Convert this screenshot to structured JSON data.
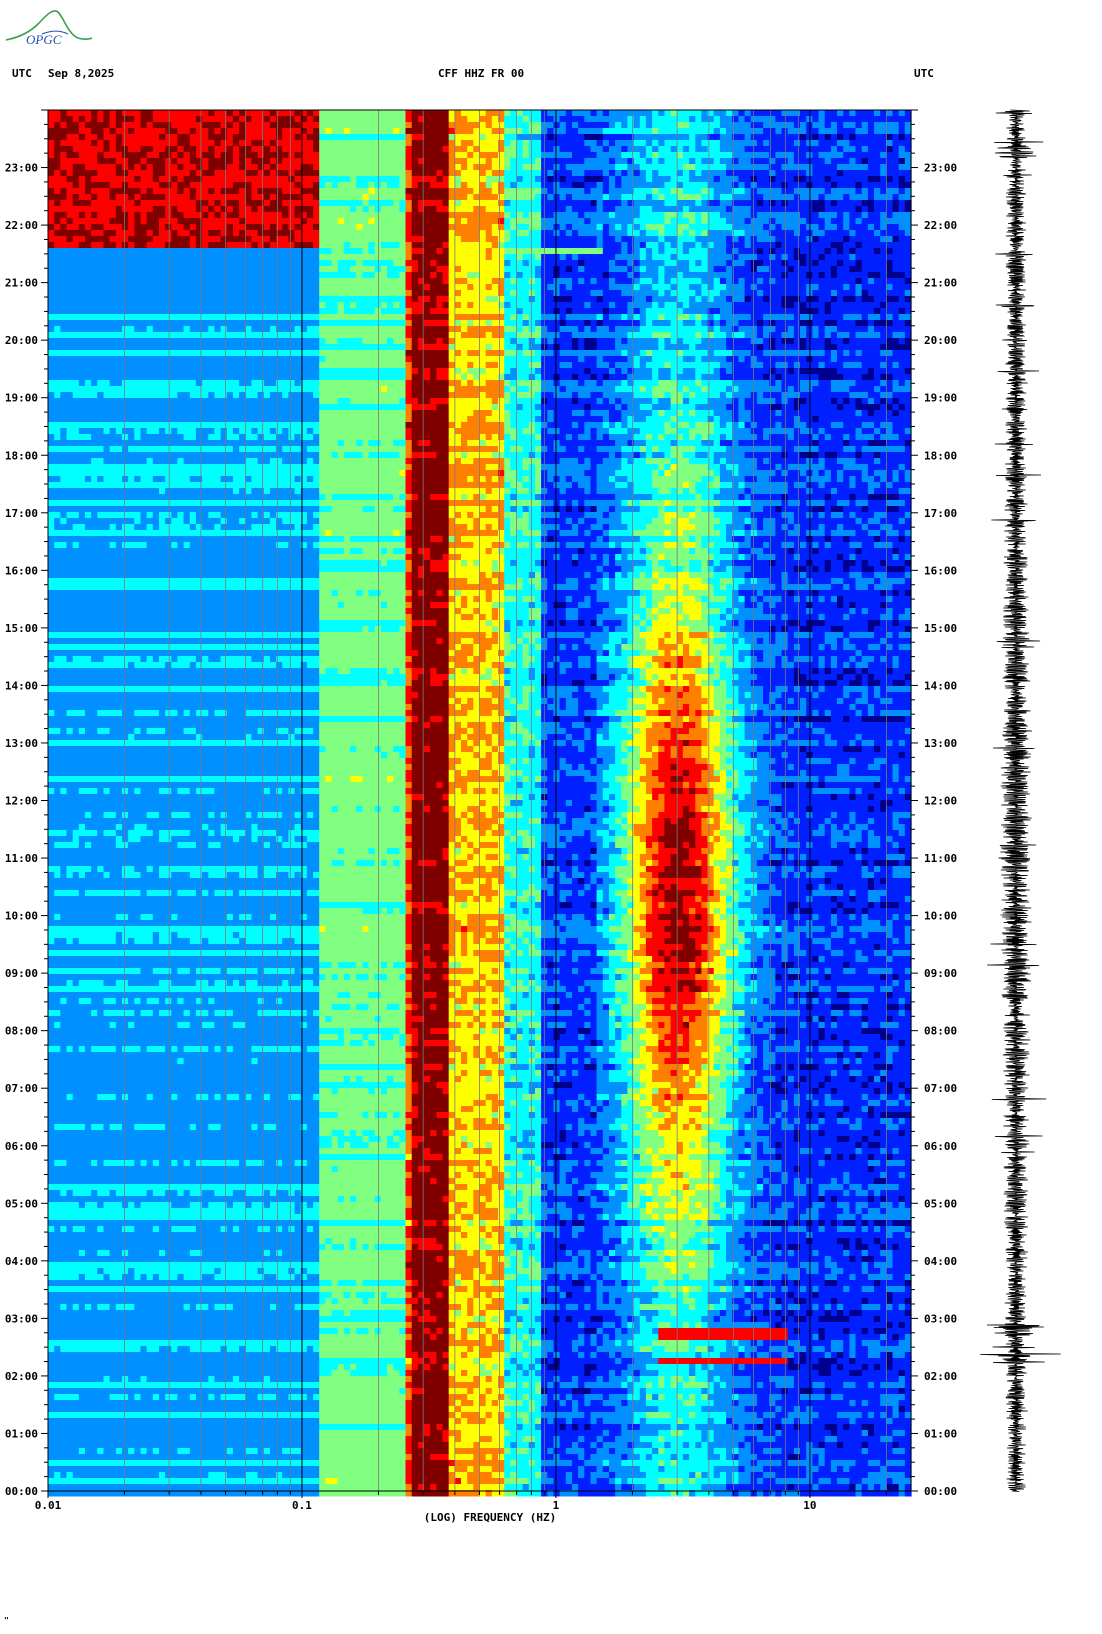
{
  "header": {
    "utc_left": "UTC",
    "date": "Sep 8,2025",
    "station": "CFF HHZ FR 00",
    "utc_right": "UTC"
  },
  "logo": {
    "text": "OPGC"
  },
  "footer_mark": "\"",
  "chart_data": {
    "type": "heatmap",
    "title": "CFF HHZ FR 00",
    "xlabel": "(LOG) FREQUENCY (HZ)",
    "ylabel": "UTC",
    "x_scale": "log",
    "xlim": [
      0.01,
      25
    ],
    "x_ticks": [
      {
        "value": 0.01,
        "label": "0.01"
      },
      {
        "value": 0.1,
        "label": "0.1"
      },
      {
        "value": 1,
        "label": "1"
      },
      {
        "value": 10,
        "label": "10"
      }
    ],
    "ylim_hours": [
      0,
      24
    ],
    "y_ticks": [
      "00:00",
      "01:00",
      "02:00",
      "03:00",
      "04:00",
      "05:00",
      "06:00",
      "07:00",
      "08:00",
      "09:00",
      "10:00",
      "11:00",
      "12:00",
      "13:00",
      "14:00",
      "15:00",
      "16:00",
      "17:00",
      "18:00",
      "19:00",
      "20:00",
      "21:00",
      "22:00",
      "23:00"
    ],
    "colormap": [
      "#00008f",
      "#0020ff",
      "#0090ff",
      "#00ffff",
      "#80ff80",
      "#ffff00",
      "#ff8000",
      "#ff0000",
      "#800000"
    ],
    "features": [
      {
        "name": "microseism band",
        "freq_range_hz": [
          0.12,
          0.3
        ],
        "level": "saturated"
      },
      {
        "name": "anthropogenic noise",
        "freq_range_hz": [
          1.5,
          6
        ],
        "hours": [
          5,
          17
        ],
        "level": "high"
      },
      {
        "name": "event",
        "freq_range_hz": [
          2.5,
          8
        ],
        "hour": 2.8,
        "level": "high"
      },
      {
        "name": "event",
        "freq_range_hz": [
          2.5,
          8
        ],
        "hour": 2.3,
        "level": "high"
      },
      {
        "name": "event",
        "freq_range_hz": [
          0.25,
          1.5
        ],
        "hour": 21.6,
        "level": "medium"
      },
      {
        "name": "low-frequency disturbance",
        "freq_range_hz": [
          0.01,
          0.12
        ],
        "hours": [
          21.6,
          24
        ],
        "level": "saturated"
      }
    ]
  }
}
